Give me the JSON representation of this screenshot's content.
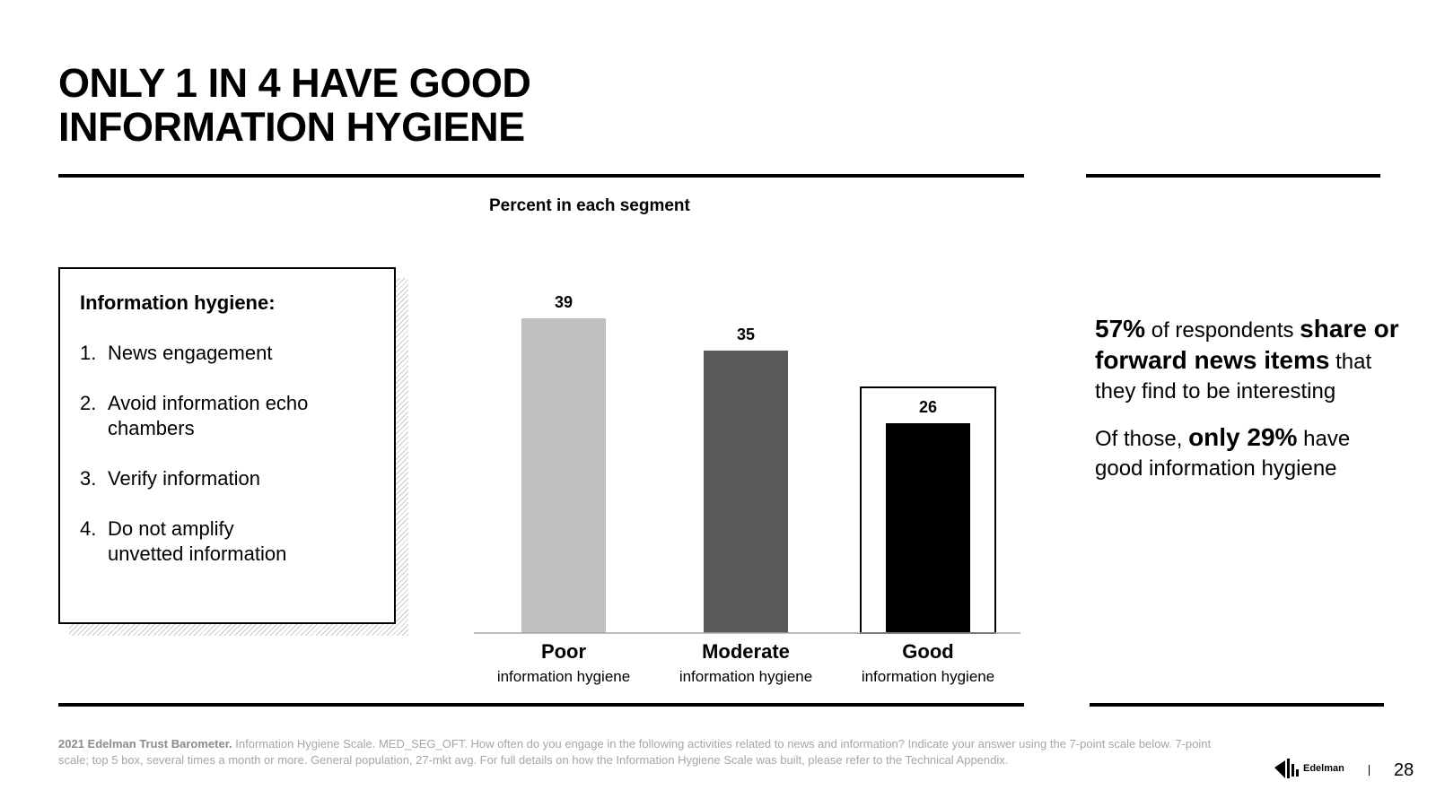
{
  "title": {
    "line1": "ONLY 1 IN 4 HAVE GOOD",
    "line2": "INFORMATION HYGIENE"
  },
  "box": {
    "heading": "Information hygiene:",
    "items": [
      {
        "num": "1.",
        "label": "News engagement"
      },
      {
        "num": "2.",
        "label": "Avoid information echo chambers"
      },
      {
        "num": "3.",
        "label": "Verify information"
      },
      {
        "num": "4.",
        "label": "Do not amplify unvetted information"
      }
    ]
  },
  "chart_data": {
    "type": "bar",
    "title": "Percent in each segment",
    "categories": [
      "Poor",
      "Moderate",
      "Good"
    ],
    "category_sublabels": [
      "information hygiene",
      "information hygiene",
      "information hygiene"
    ],
    "values": [
      39,
      35,
      26
    ],
    "colors": [
      "#bfbfbf",
      "#595959",
      "#000000"
    ],
    "highlighted": "Good",
    "ylim": [
      0,
      45
    ]
  },
  "callout": {
    "p1_pct": "57%",
    "p1_text1": " of respondents ",
    "p1_bold": "share or forward news items",
    "p1_text2": " that they find to be interesting",
    "p2_text1": "Of those, ",
    "p2_bold": "only 29%",
    "p2_text2": " have good information hygiene"
  },
  "footnote": {
    "bold": "2021 Edelman Trust Barometer.",
    "text": " Information Hygiene Scale. MED_SEG_OFT. How often do you engage in the following activities related to news and information? Indicate your answer using the 7-point scale below. 7-point scale; top 5 box, several times a month or more. General population, 27-mkt avg. For full details on how the Information Hygiene Scale was built, please refer to the Technical Appendix."
  },
  "brand": {
    "name": "Edelman",
    "page_number": "28"
  }
}
